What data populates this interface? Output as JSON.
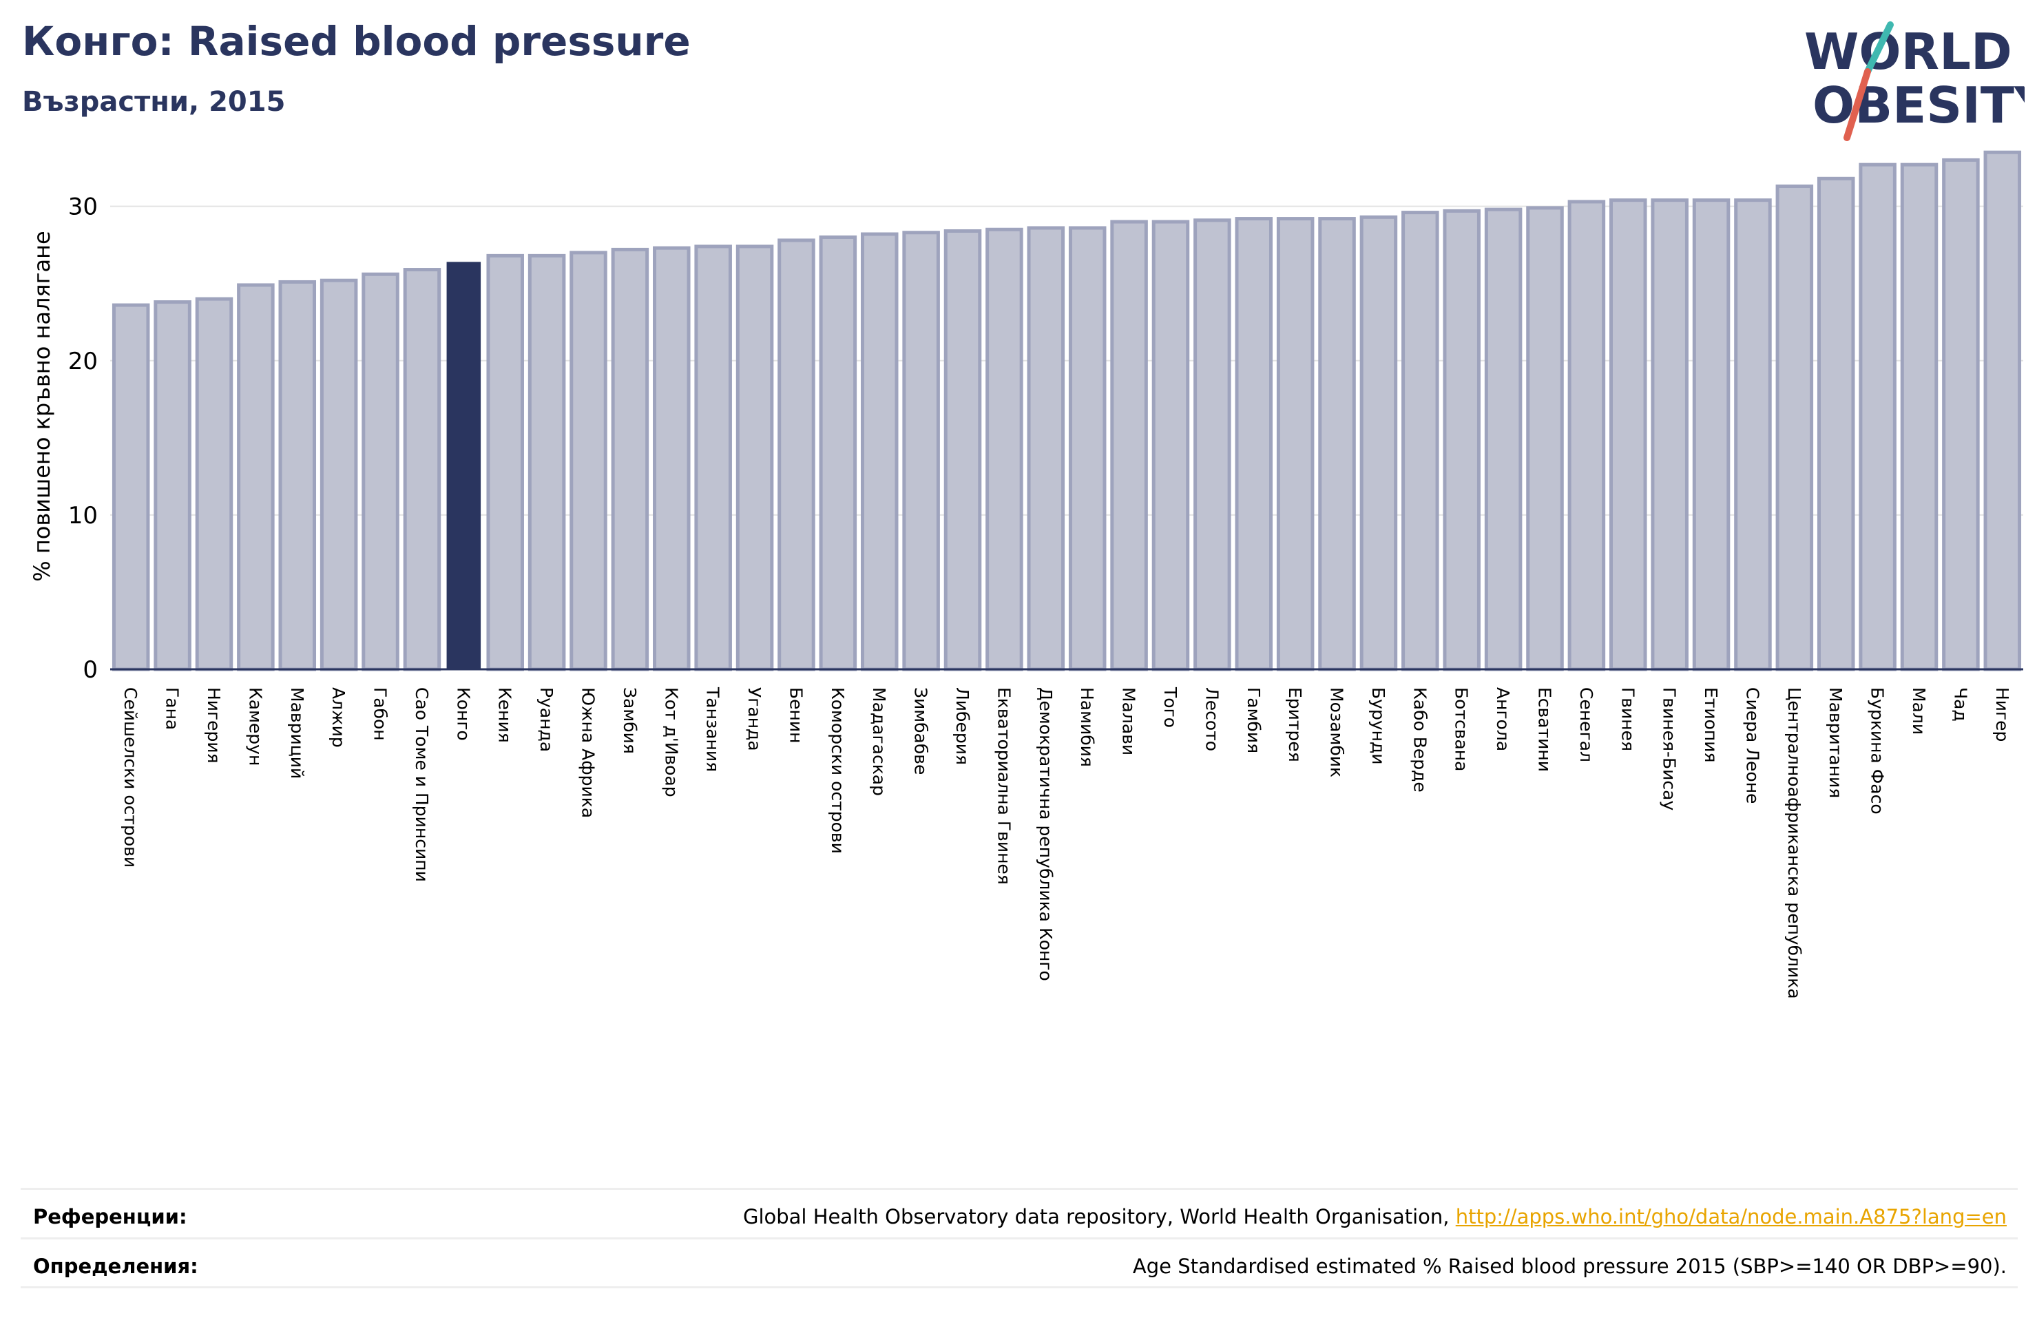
{
  "title": "Конго: Raised blood pressure",
  "subtitle": "Възрастни, 2015",
  "logo": {
    "line1": "WORLD",
    "line2": "OBESITY"
  },
  "colors": {
    "bar": "#bfc2d1",
    "bar_edge": "#9ea3bd",
    "highlight": "#2a355f",
    "title": "#2a355f",
    "link": "#e8a400"
  },
  "chart_data": {
    "type": "bar",
    "ylabel": "% повишено кръвно налягане",
    "ylim": [
      0,
      34
    ],
    "yticks": [
      0,
      10,
      20,
      30
    ],
    "grid": true,
    "highlight": "Конго",
    "categories": [
      "Сейшелски острови",
      "Гана",
      "Нигерия",
      "Камерун",
      "Мавриций",
      "Алжир",
      "Габон",
      "Сао Томе и Принсипи",
      "Конго",
      "Кения",
      "Руанда",
      "Южна Африка",
      "Замбия",
      "Кот д'Ивоар",
      "Танзания",
      "Уганда",
      "Бенин",
      "Коморски острови",
      "Мадагаскар",
      "Зимбабве",
      "Либерия",
      "Екваториална Гвинея",
      "Демократична република Конго",
      "Намибия",
      "Малави",
      "Того",
      "Лесото",
      "Гамбия",
      "Еритрея",
      "Мозамбик",
      "Бурунди",
      "Кабо Верде",
      "Ботсвана",
      "Ангола",
      "Есватини",
      "Сенегал",
      "Гвинея",
      "Гвинея-Бисау",
      "Етиопия",
      "Сиера Леоне",
      "Централноафриканска република",
      "Мавритания",
      "Буркина Фасо",
      "Мали",
      "Чад",
      "Нигер"
    ],
    "values": [
      23.6,
      23.8,
      24.0,
      24.9,
      25.1,
      25.2,
      25.6,
      25.9,
      26.4,
      26.8,
      26.8,
      27.0,
      27.2,
      27.3,
      27.4,
      27.4,
      27.8,
      28.0,
      28.2,
      28.3,
      28.4,
      28.5,
      28.6,
      28.6,
      29.0,
      29.0,
      29.1,
      29.2,
      29.2,
      29.2,
      29.3,
      29.6,
      29.7,
      29.8,
      29.9,
      30.3,
      30.4,
      30.4,
      30.4,
      30.4,
      31.3,
      31.8,
      32.7,
      32.7,
      33.0,
      33.5
    ]
  },
  "footer": {
    "references_label": "Референции:",
    "references_text": "Global Health Observatory data repository, World Health Organisation, ",
    "references_link": "http://apps.who.int/gho/data/node.main.A875?lang=en",
    "definitions_label": "Определения:",
    "definitions_text": "Age Standardised estimated % Raised blood pressure 2015 (SBP>=140 OR DBP>=90)."
  }
}
